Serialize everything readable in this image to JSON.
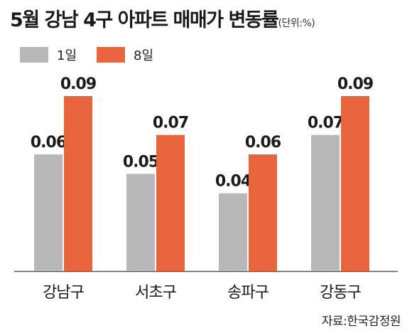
{
  "chart_data": {
    "type": "bar",
    "title": "5월 강남 4구 아파트 매매가 변동률",
    "unit_note": "(단위:%)",
    "categories": [
      "강남구",
      "서초구",
      "송파구",
      "강동구"
    ],
    "series": [
      {
        "name": "1일",
        "color": "#b8b8b8",
        "values": [
          0.06,
          0.05,
          0.04,
          0.07
        ],
        "labels": [
          "0.06",
          "0.05",
          "0.04",
          "0.07"
        ]
      },
      {
        "name": "8일",
        "color": "#e8643c",
        "values": [
          0.09,
          0.07,
          0.06,
          0.09
        ],
        "labels": [
          "0.09",
          "0.07",
          "0.06",
          "0.09"
        ]
      }
    ],
    "ylim": [
      0,
      0.1
    ],
    "grid": false,
    "legend": "top-left",
    "source": "자료:한국감정원"
  }
}
